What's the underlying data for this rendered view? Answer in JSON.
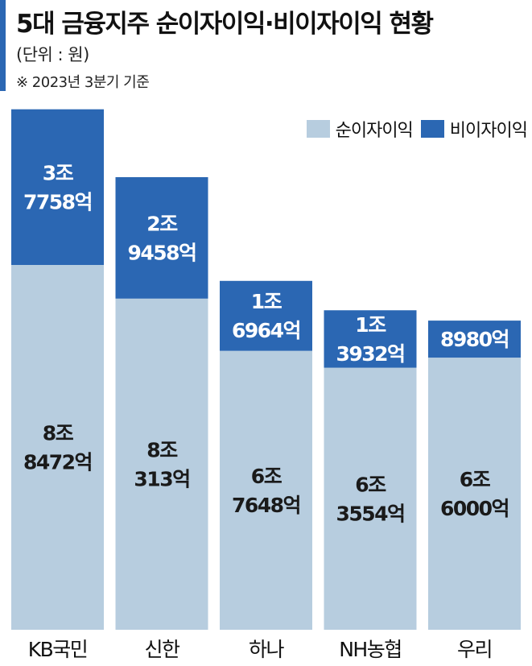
{
  "header": {
    "title": "5대 금융지주 순이자이익·비이자이익 현황",
    "unit": "(단위 : 원)",
    "note": "※ 2023년 3분기 기준"
  },
  "colors": {
    "accent": "#2b67b3",
    "net_interest": "#b7cddf",
    "non_interest": "#2b67b3"
  },
  "chart_data": {
    "type": "bar",
    "stacked": true,
    "categories": [
      "KB국민",
      "신한",
      "하나",
      "NH농협",
      "우리"
    ],
    "series": [
      {
        "name": "순이자이익",
        "values": [
          88472,
          80313,
          67648,
          63554,
          66000
        ],
        "labels": [
          [
            "8조",
            "8472억"
          ],
          [
            "8조",
            "313억"
          ],
          [
            "6조",
            "7648억"
          ],
          [
            "6조",
            "3554억"
          ],
          [
            "6조",
            "6000억"
          ]
        ]
      },
      {
        "name": "비이자이익",
        "values": [
          37758,
          29458,
          16964,
          13932,
          8980
        ],
        "labels": [
          [
            "3조",
            "7758억"
          ],
          [
            "2조",
            "9458억"
          ],
          [
            "1조",
            "6964억"
          ],
          [
            "1조",
            "3932억"
          ],
          [
            "8980억"
          ]
        ]
      }
    ],
    "legend": "top-right",
    "value_unit": "억원",
    "grid": false
  }
}
